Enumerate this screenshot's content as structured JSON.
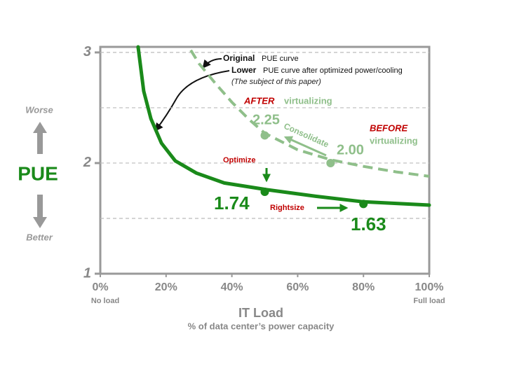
{
  "chart_data": {
    "type": "line",
    "y_label": "PUE",
    "y_top_note": "Worse",
    "y_bottom_note": "Better",
    "x_label": "IT Load",
    "x_sublabel": "% of data center’s power capacity",
    "x_start_note": "No load",
    "x_end_note": "Full load",
    "xlim": [
      0,
      100
    ],
    "ylim": [
      1,
      3.05
    ],
    "xticks": [
      {
        "value": 0,
        "label": "0%"
      },
      {
        "value": 20,
        "label": "20%"
      },
      {
        "value": 40,
        "label": "40%"
      },
      {
        "value": 60,
        "label": "60%"
      },
      {
        "value": 80,
        "label": "80%"
      },
      {
        "value": 100,
        "label": "100%"
      }
    ],
    "yticks": [
      1,
      2,
      3
    ],
    "ygrid": [
      1.5,
      2,
      2.5,
      3
    ],
    "grid": true,
    "series": [
      {
        "name": "Original",
        "note": "PUE curve",
        "color": "#8fbf8a",
        "dashed": true,
        "x": [
          27.5,
          30,
          35,
          40,
          45,
          50,
          60,
          70,
          80,
          90,
          100
        ],
        "values": [
          3.02,
          2.9,
          2.72,
          2.55,
          2.4,
          2.27,
          2.12,
          2.03,
          1.97,
          1.92,
          1.88
        ],
        "marker_x": [
          50,
          70
        ],
        "marker_values": [
          2.25,
          2.0
        ],
        "marker_labels": [
          "2.25",
          "2.00"
        ]
      },
      {
        "name": "Lower",
        "note": "PUE curve after optimized power/cooling",
        "color": "#1a8a1a",
        "dashed": false,
        "x": [
          11.5,
          13.2,
          15.4,
          18.6,
          22.8,
          29.2,
          37.7,
          50.5,
          65.5,
          80,
          100
        ],
        "values": [
          3.05,
          2.65,
          2.4,
          2.18,
          2.02,
          1.91,
          1.82,
          1.76,
          1.7,
          1.65,
          1.62
        ],
        "marker_x": [
          50,
          80
        ],
        "marker_values": [
          1.74,
          1.63
        ],
        "marker_labels": [
          "1.74",
          "1.63"
        ]
      }
    ],
    "annotations": [
      {
        "text": "(The subject of this paper)",
        "color": "#222222"
      },
      {
        "text": "AFTER",
        "color": "#c00000"
      },
      {
        "text": "virtualizing",
        "color": "#8fbf8a"
      },
      {
        "text": "BEFORE",
        "color": "#c00000"
      },
      {
        "text": "virtualizing",
        "color": "#8fbf8a"
      },
      {
        "text": "Consolidate",
        "color": "#8fbf8a"
      },
      {
        "text": "Optimize",
        "color": "#c00000"
      },
      {
        "text": "Rightsize",
        "color": "#c00000"
      }
    ]
  }
}
